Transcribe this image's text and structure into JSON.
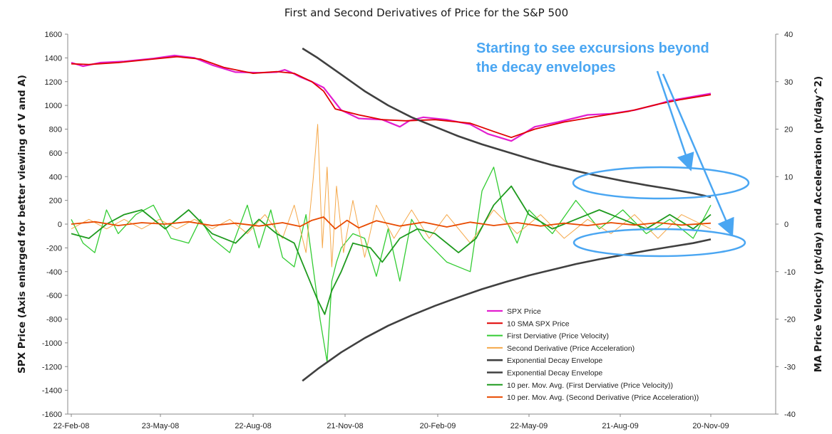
{
  "chart_data": {
    "type": "line",
    "title": "First and Second Derivatives of Price for the S&P 500",
    "ylabel_left": "SPX Price (Axis enlarged for better viewing of V and A)",
    "ylabel_right": "MA Price Velocity  (pt/day) and Acceleration (pt/day^2)",
    "ylim_left": [
      -1600,
      1600
    ],
    "ylim_right": [
      -40,
      40
    ],
    "yticks_left": [
      "1600",
      "1400",
      "1200",
      "1000",
      "800",
      "600",
      "400",
      "200",
      "0",
      "-200",
      "-400",
      "-600",
      "-800",
      "-1000",
      "-1200",
      "-1400",
      "-1600"
    ],
    "yticks_right": [
      "40",
      "30",
      "20",
      "10",
      "0",
      "-10",
      "-20",
      "-30",
      "-40"
    ],
    "xticks": [
      "22-Feb-08",
      "23-May-08",
      "22-Aug-08",
      "21-Nov-08",
      "20-Feb-09",
      "22-May-09",
      "21-Aug-09",
      "20-Nov-09"
    ],
    "grid": false,
    "legend_position": "bottom-right",
    "annotation": [
      "Starting to see excursions beyond",
      "the decay envelopes"
    ],
    "series": [
      {
        "name": "SPX Price",
        "axis": "left",
        "color": "#e21ecf",
        "x_day": [
          0,
          10,
          25,
          45,
          70,
          88,
          105,
          120,
          140,
          160,
          175,
          182,
          188,
          195,
          205,
          215,
          230,
          245,
          265,
          280,
          288,
          300,
          320,
          340,
          355,
          375,
          395,
          415,
          440,
          460,
          480,
          500,
          510,
          522,
          545
        ],
        "y": [
          1360,
          1330,
          1360,
          1370,
          1395,
          1420,
          1400,
          1340,
          1280,
          1275,
          1280,
          1300,
          1275,
          1240,
          1200,
          1150,
          960,
          890,
          880,
          820,
          870,
          900,
          880,
          840,
          760,
          700,
          820,
          860,
          920,
          930,
          960,
          1010,
          1040,
          1060,
          1100
        ]
      },
      {
        "name": "10 SMA SPX Price",
        "axis": "left",
        "color": "#e00000",
        "x_day": [
          0,
          15,
          40,
          70,
          90,
          110,
          130,
          155,
          175,
          190,
          205,
          215,
          225,
          245,
          265,
          285,
          310,
          340,
          360,
          375,
          395,
          420,
          450,
          475,
          500,
          520,
          545
        ],
        "y": [
          1350,
          1345,
          1360,
          1390,
          1410,
          1390,
          1320,
          1270,
          1285,
          1270,
          1200,
          1120,
          970,
          920,
          880,
          870,
          880,
          850,
          780,
          730,
          800,
          860,
          910,
          950,
          1010,
          1050,
          1090
        ]
      },
      {
        "name": "First Derviative (Price Velocity)",
        "axis": "right",
        "color": "#33cc33",
        "x_day": [
          0,
          10,
          20,
          30,
          40,
          55,
          70,
          85,
          100,
          110,
          120,
          135,
          150,
          160,
          170,
          180,
          190,
          200,
          212,
          218,
          222,
          226,
          230,
          240,
          250,
          260,
          270,
          280,
          290,
          300,
          320,
          340,
          350,
          360,
          370,
          380,
          390,
          410,
          430,
          450,
          470,
          490,
          510,
          530,
          545
        ],
        "y": [
          1,
          -4,
          -6,
          3,
          -2,
          2,
          4,
          -3,
          -4,
          1,
          -3,
          -6,
          4,
          -5,
          3,
          -7,
          -9,
          2,
          -20,
          -29,
          -12,
          -8,
          -5,
          -2,
          -3,
          -11,
          -1,
          -12,
          1,
          -3,
          -8,
          -10,
          7,
          12,
          1,
          -4,
          3,
          -2,
          5,
          -1,
          3,
          -2,
          1,
          -3,
          4
        ]
      },
      {
        "name": "Second Derivative (Price Acceleration)",
        "axis": "right",
        "color": "#f5a84a",
        "x_day": [
          0,
          15,
          30,
          45,
          60,
          75,
          90,
          105,
          120,
          135,
          150,
          165,
          180,
          190,
          200,
          206,
          210,
          214,
          218,
          222,
          226,
          232,
          240,
          250,
          260,
          275,
          290,
          305,
          320,
          340,
          360,
          380,
          400,
          420,
          440,
          460,
          480,
          500,
          520,
          545
        ],
        "y": [
          -1,
          1,
          -1,
          1,
          -1,
          1,
          -1,
          1,
          -1,
          1,
          -2,
          2,
          -3,
          4,
          -6,
          9,
          21,
          -5,
          12,
          -9,
          8,
          -6,
          5,
          -7,
          4,
          -3,
          3,
          -3,
          2,
          -4,
          3,
          -2,
          2,
          -3,
          1,
          -2,
          2,
          -3,
          2,
          -1
        ]
      },
      {
        "name": "Exponential Decay Envelope",
        "axis": "right",
        "color": "#404040",
        "x_day": [
          197,
          210,
          230,
          250,
          270,
          290,
          310,
          330,
          350,
          370,
          390,
          410,
          430,
          450,
          470,
          490,
          510,
          530,
          545
        ],
        "y": [
          37,
          35,
          31.5,
          28,
          25,
          22.5,
          20.5,
          18.5,
          16.8,
          15.3,
          13.8,
          12.4,
          11.2,
          10.1,
          9.1,
          8.2,
          7.4,
          6.5,
          5.7
        ]
      },
      {
        "name": "Exponential Decay Envelope",
        "axis": "right",
        "color": "#404040",
        "x_day": [
          197,
          210,
          230,
          250,
          270,
          290,
          310,
          330,
          350,
          370,
          390,
          410,
          430,
          450,
          470,
          490,
          510,
          530,
          545
        ],
        "y": [
          -33,
          -30.5,
          -27,
          -24,
          -21.4,
          -19.2,
          -17.2,
          -15.4,
          -13.7,
          -12.2,
          -10.8,
          -9.6,
          -8.4,
          -7.4,
          -6.5,
          -5.6,
          -4.8,
          -4.0,
          -3.2
        ]
      },
      {
        "name": "10 per. Mov. Avg. (First Derviative (Price Velocity))",
        "axis": "right",
        "color": "#1e9a1e",
        "x_day": [
          0,
          15,
          30,
          45,
          60,
          80,
          100,
          120,
          140,
          160,
          175,
          190,
          200,
          210,
          216,
          222,
          230,
          240,
          255,
          265,
          280,
          295,
          310,
          330,
          345,
          360,
          375,
          390,
          410,
          430,
          450,
          470,
          490,
          510,
          530,
          545
        ],
        "y": [
          -2,
          -3,
          0,
          2,
          3,
          -1,
          3,
          -2,
          -4,
          1,
          -2,
          -4,
          -10,
          -16,
          -19,
          -14,
          -10,
          -4,
          -5,
          -8,
          -3,
          -1,
          -2,
          -6,
          -3,
          4,
          8,
          2,
          -1,
          1,
          3,
          1,
          -1,
          2,
          -1,
          2
        ]
      },
      {
        "name": "10 per. Mov. Avg. (Second Derivative (Price Acceleration))",
        "axis": "right",
        "color": "#e84a00",
        "x_day": [
          0,
          20,
          40,
          60,
          80,
          100,
          120,
          140,
          160,
          180,
          195,
          205,
          215,
          225,
          235,
          245,
          260,
          280,
          300,
          320,
          340,
          360,
          380,
          400,
          420,
          440,
          460,
          480,
          500,
          520,
          545
        ],
        "y": [
          0,
          0.5,
          -0.3,
          0.3,
          0,
          0.5,
          -0.3,
          0.2,
          -0.4,
          0.3,
          -0.5,
          0.8,
          1.5,
          -1,
          0.8,
          -0.8,
          0.7,
          -0.4,
          0.4,
          -0.6,
          0.4,
          -0.3,
          0.3,
          -0.4,
          0.2,
          -0.3,
          0.3,
          -0.2,
          0.3,
          -0.2,
          0.2
        ]
      }
    ]
  }
}
